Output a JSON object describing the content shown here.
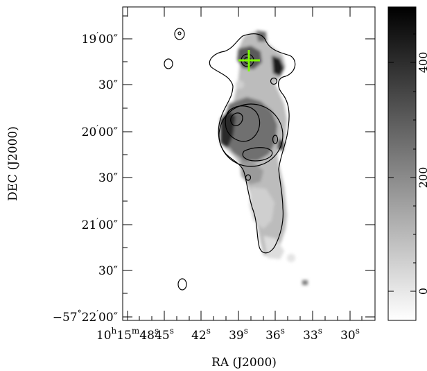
{
  "chart_data": {
    "type": "heatmap",
    "title": "",
    "xlabel": "RA (J2000)",
    "ylabel": "DEC (J2000)",
    "x_ticks": [
      {
        "h": "10",
        "hs": "h",
        "m": "15",
        "ms": "m",
        "s": "48",
        "ss": "s"
      },
      {
        "s": "45",
        "ss": "s"
      },
      {
        "s": "42",
        "ss": "s"
      },
      {
        "s": "39",
        "ss": "s"
      },
      {
        "s": "36",
        "ss": "s"
      },
      {
        "s": "33",
        "ss": "s"
      },
      {
        "s": "30",
        "ss": "s"
      }
    ],
    "y_ticks": [
      {
        "deg": "",
        "min": "19",
        "sec": "00″"
      },
      {
        "deg": "",
        "min": "",
        "sec": "30″"
      },
      {
        "deg": "",
        "min": "20",
        "sec": "00″"
      },
      {
        "deg": "",
        "min": "",
        "sec": "30″"
      },
      {
        "deg": "",
        "min": "21",
        "sec": "00″"
      },
      {
        "deg": "",
        "min": "",
        "sec": "30″"
      },
      {
        "deg": "−57",
        "min": "22",
        "sec": "00″"
      }
    ],
    "colorbar": {
      "ticks": [
        "0",
        "200",
        "400"
      ],
      "values": [
        0,
        200,
        400
      ],
      "range": [
        -80,
        550
      ],
      "colormap": "white-to-black"
    },
    "marker": {
      "type": "cross",
      "color": "#7CFC00",
      "ra": "10:15:37.7",
      "dec": "-57:19:08"
    }
  }
}
